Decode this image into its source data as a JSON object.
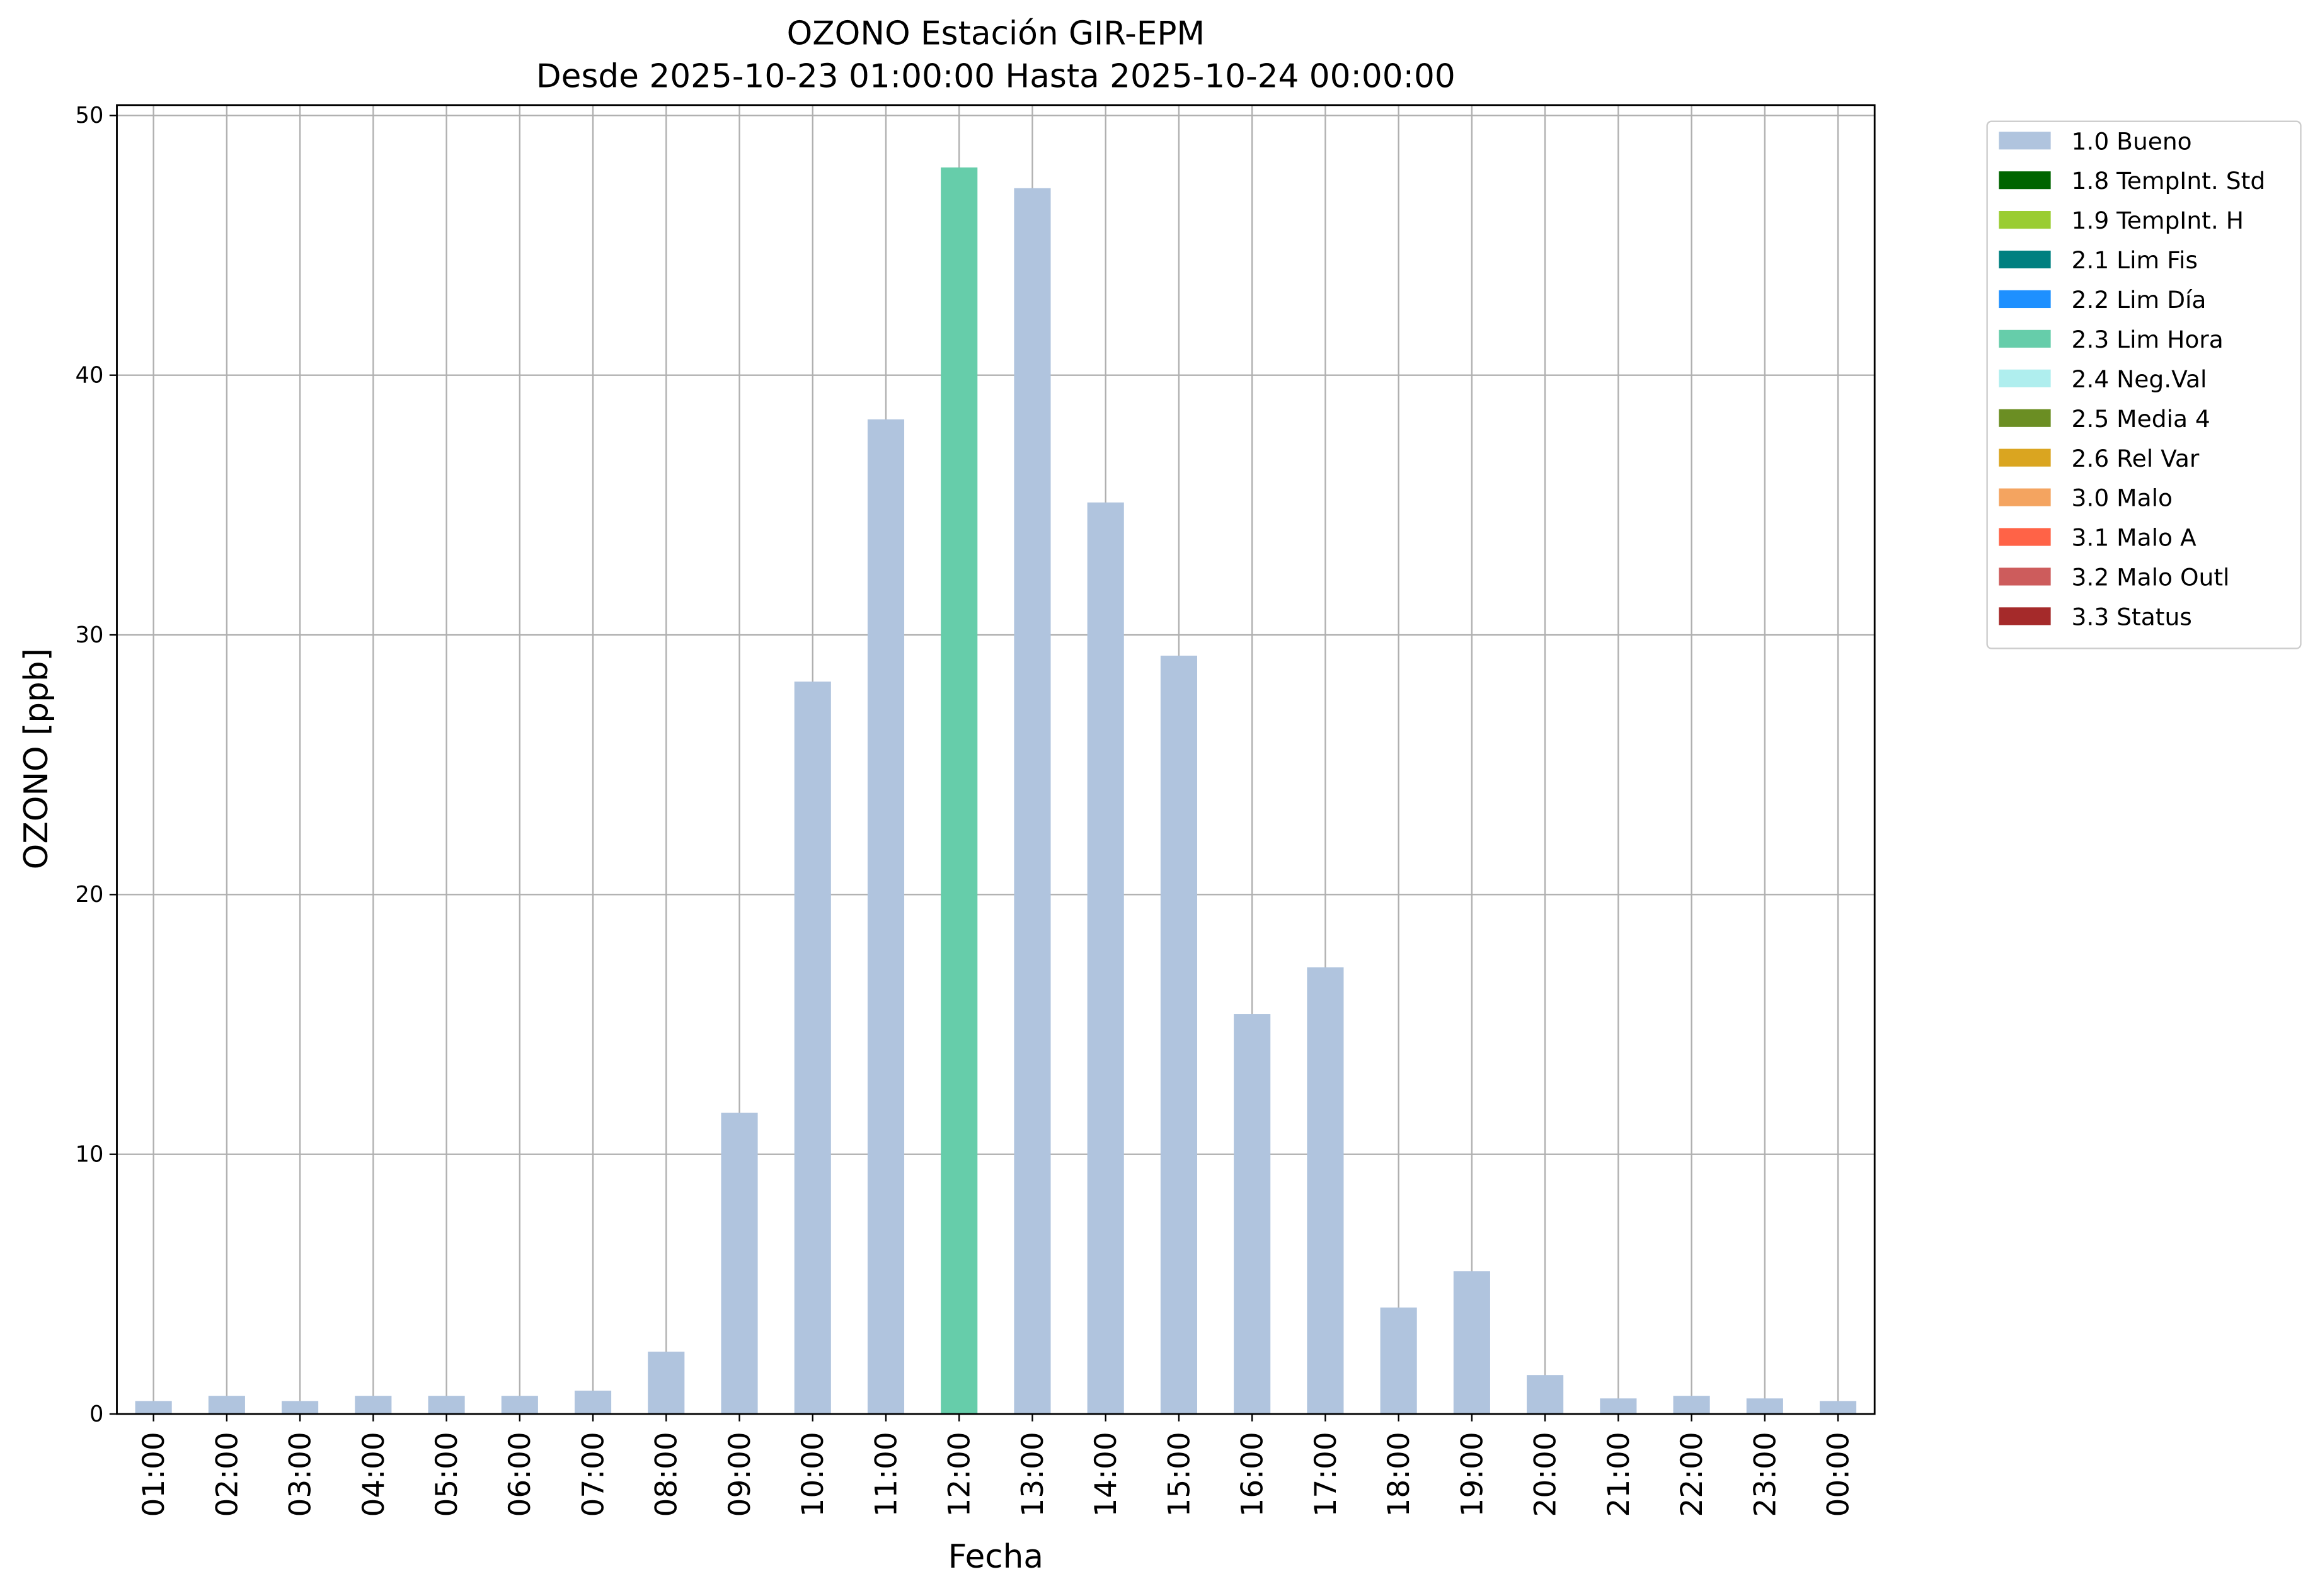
{
  "chart_data": {
    "type": "bar",
    "stacked": true,
    "title": "OZONO Estación GIR-EPM",
    "subtitle": "Desde 2025-10-23 01:00:00 Hasta 2025-10-24 00:00:00",
    "x_label": "Fecha",
    "y_label": "OZONO [ppb]",
    "categories": [
      "01:00",
      "02:00",
      "03:00",
      "04:00",
      "05:00",
      "06:00",
      "07:00",
      "08:00",
      "09:00",
      "10:00",
      "11:00",
      "12:00",
      "13:00",
      "14:00",
      "15:00",
      "16:00",
      "17:00",
      "18:00",
      "19:00",
      "20:00",
      "21:00",
      "22:00",
      "23:00",
      "00:00"
    ],
    "series": [
      {
        "name": "1.0 Bueno",
        "color": "#b0c4de",
        "values": [
          0.5,
          0.7,
          0.5,
          0.7,
          0.7,
          0.7,
          0.9,
          2.4,
          11.6,
          28.2,
          38.3,
          null,
          47.2,
          35.1,
          29.2,
          15.4,
          17.2,
          4.1,
          5.5,
          1.5,
          0.6,
          0.7,
          0.6,
          0.5
        ]
      },
      {
        "name": "1.8 TempInt. Std",
        "color": "#006400",
        "values": [
          null,
          null,
          null,
          null,
          null,
          null,
          null,
          null,
          null,
          null,
          null,
          null,
          null,
          null,
          null,
          null,
          null,
          null,
          null,
          null,
          null,
          null,
          null,
          null
        ]
      },
      {
        "name": "1.9 TempInt. H",
        "color": "#9acd32",
        "values": [
          null,
          null,
          null,
          null,
          null,
          null,
          null,
          null,
          null,
          null,
          null,
          null,
          null,
          null,
          null,
          null,
          null,
          null,
          null,
          null,
          null,
          null,
          null,
          null
        ]
      },
      {
        "name": "2.1 Lim Fis",
        "color": "#008080",
        "values": [
          null,
          null,
          null,
          null,
          null,
          null,
          null,
          null,
          null,
          null,
          null,
          null,
          null,
          null,
          null,
          null,
          null,
          null,
          null,
          null,
          null,
          null,
          null,
          null
        ]
      },
      {
        "name": "2.2 Lim Día",
        "color": "#1e90ff",
        "values": [
          null,
          null,
          null,
          null,
          null,
          null,
          null,
          null,
          null,
          null,
          null,
          null,
          null,
          null,
          null,
          null,
          null,
          null,
          null,
          null,
          null,
          null,
          null,
          null
        ]
      },
      {
        "name": "2.3 Lim Hora",
        "color": "#66cdaa",
        "values": [
          null,
          null,
          null,
          null,
          null,
          null,
          null,
          null,
          null,
          null,
          null,
          48.0,
          null,
          null,
          null,
          null,
          null,
          null,
          null,
          null,
          null,
          null,
          null,
          null
        ]
      },
      {
        "name": "2.4 Neg.Val",
        "color": "#afeeee",
        "values": [
          null,
          null,
          null,
          null,
          null,
          null,
          null,
          null,
          null,
          null,
          null,
          null,
          null,
          null,
          null,
          null,
          null,
          null,
          null,
          null,
          null,
          null,
          null,
          null
        ]
      },
      {
        "name": "2.5 Media 4",
        "color": "#6b8e23",
        "values": [
          null,
          null,
          null,
          null,
          null,
          null,
          null,
          null,
          null,
          null,
          null,
          null,
          null,
          null,
          null,
          null,
          null,
          null,
          null,
          null,
          null,
          null,
          null,
          null
        ]
      },
      {
        "name": "2.6 Rel Var",
        "color": "#daa520",
        "values": [
          null,
          null,
          null,
          null,
          null,
          null,
          null,
          null,
          null,
          null,
          null,
          null,
          null,
          null,
          null,
          null,
          null,
          null,
          null,
          null,
          null,
          null,
          null,
          null
        ]
      },
      {
        "name": "3.0 Malo",
        "color": "#f4a460",
        "values": [
          null,
          null,
          null,
          null,
          null,
          null,
          null,
          null,
          null,
          null,
          null,
          null,
          null,
          null,
          null,
          null,
          null,
          null,
          null,
          null,
          null,
          null,
          null,
          null
        ]
      },
      {
        "name": "3.1 Malo A",
        "color": "#ff6347",
        "values": [
          null,
          null,
          null,
          null,
          null,
          null,
          null,
          null,
          null,
          null,
          null,
          null,
          null,
          null,
          null,
          null,
          null,
          null,
          null,
          null,
          null,
          null,
          null,
          null
        ]
      },
      {
        "name": "3.2 Malo Outl",
        "color": "#cd5c5c",
        "values": [
          null,
          null,
          null,
          null,
          null,
          null,
          null,
          null,
          null,
          null,
          null,
          null,
          null,
          null,
          null,
          null,
          null,
          null,
          null,
          null,
          null,
          null,
          null,
          null
        ]
      },
      {
        "name": "3.3 Status",
        "color": "#a52a2a",
        "values": [
          null,
          null,
          null,
          null,
          null,
          null,
          null,
          null,
          null,
          null,
          null,
          null,
          null,
          null,
          null,
          null,
          null,
          null,
          null,
          null,
          null,
          null,
          null,
          null
        ]
      }
    ],
    "ylim": [
      0,
      50.4
    ],
    "yticks": [
      0,
      10,
      20,
      30,
      40,
      50
    ],
    "grid": true,
    "legend": "right"
  }
}
